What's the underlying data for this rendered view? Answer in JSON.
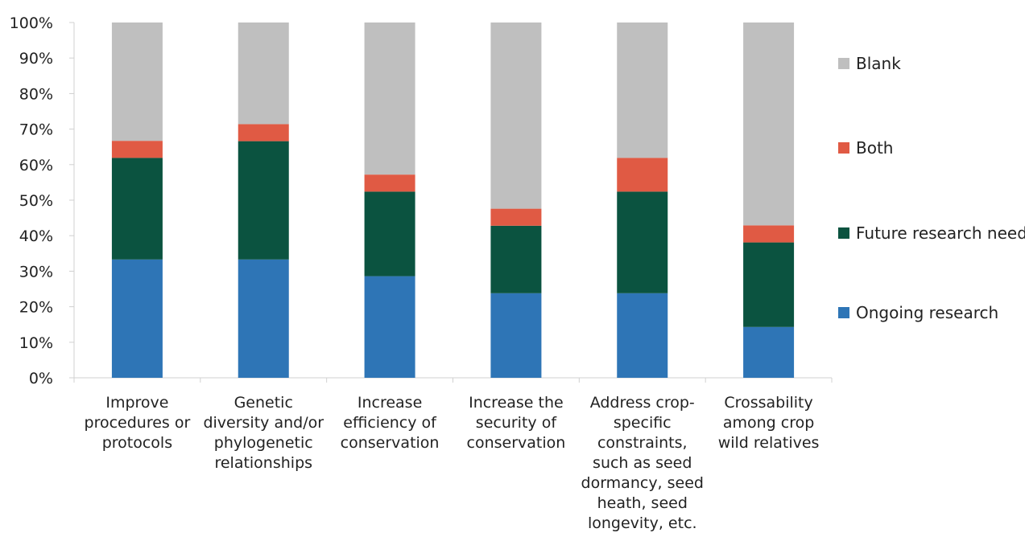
{
  "chart_data": {
    "type": "bar",
    "stacked": true,
    "percent_stacked": true,
    "ylim": [
      0,
      100
    ],
    "ytick_step": 10,
    "ytick_labels": [
      "0%",
      "10%",
      "20%",
      "30%",
      "40%",
      "50%",
      "60%",
      "70%",
      "80%",
      "90%",
      "100%"
    ],
    "grid": false,
    "legend_position": "right",
    "categories": [
      [
        "Improve",
        "procedures or",
        "protocols"
      ],
      [
        "Genetic",
        "diversity and/or",
        "phylogenetic",
        "relationships"
      ],
      [
        "Increase",
        "efficiency of",
        "conservation"
      ],
      [
        "Increase the",
        "security of",
        "conservation"
      ],
      [
        "Address crop-",
        "specific",
        "constraints,",
        "such as seed",
        "dormancy, seed",
        "heath, seed",
        "longevity, etc."
      ],
      [
        "Crossability",
        "among crop",
        "wild relatives"
      ]
    ],
    "series": [
      {
        "name": "Ongoing research",
        "color": "#2e75b6",
        "values": [
          33.3,
          33.3,
          28.6,
          23.8,
          23.8,
          14.3
        ]
      },
      {
        "name": "Future research need",
        "color": "#0b5340",
        "values": [
          28.6,
          33.3,
          23.8,
          19.0,
          28.6,
          23.8
        ]
      },
      {
        "name": "Both",
        "color": "#e05a44",
        "values": [
          4.8,
          4.8,
          4.8,
          4.8,
          9.5,
          4.8
        ]
      },
      {
        "name": "Blank",
        "color": "#bfbfbf",
        "values": [
          33.3,
          28.6,
          42.8,
          52.4,
          38.1,
          57.1
        ]
      }
    ],
    "legend_order": [
      "Blank",
      "Both",
      "Future research need",
      "Ongoing research"
    ]
  }
}
